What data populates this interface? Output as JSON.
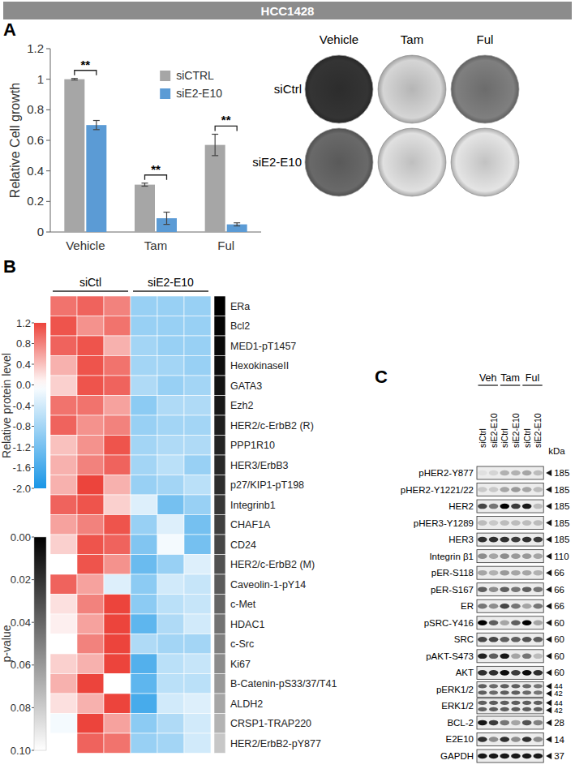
{
  "panel_labels": [
    "A",
    "B",
    "C"
  ],
  "chart_data": [
    {
      "type": "bar",
      "title": "HCC1428",
      "y_label": "Relative Cell growth",
      "categories": [
        "Vehicle",
        "Tam",
        "Ful"
      ],
      "series": [
        {
          "name": "siCTRL",
          "color": "#a6a6a6",
          "values": [
            1,
            0.31,
            0.57
          ],
          "errors": [
            0.005,
            0.01,
            0.07
          ]
        },
        {
          "name": "siE2-E10",
          "color": "#5b9bd5",
          "values": [
            0.7,
            0.09,
            0.05
          ],
          "errors": [
            0.03,
            0.04,
            0.01
          ]
        }
      ],
      "significance": [
        "**",
        "**",
        "**"
      ],
      "ylim": [
        0,
        1.2
      ],
      "yticks": [
        0,
        0.2,
        0.4,
        0.6,
        0.8,
        1,
        1.2
      ],
      "grid": false,
      "legend": "top"
    },
    {
      "type": "heatmap",
      "column_groups": [
        "siCtl",
        "siE2-E10"
      ],
      "rows": [
        "ERa",
        "Bcl2",
        "MED1-pT1457",
        "HexokinaseII",
        "GATA3",
        "Ezh2",
        "HER2/c-ErbB2 (R)",
        "PPP1R10",
        "HER3/ErbB3",
        "p27/KIP1-pT198",
        "Integrinb1",
        "CHAF1A",
        "CD24",
        "HER2/c-ErbB2 (M)",
        "Caveolin-1-pY14",
        "c-Met",
        "HDAC1",
        "c-Src",
        "Ki67",
        "B-Catenin-pS33/37/T41",
        "ALDH2",
        "CRSP1-TRAP220",
        "HER2/ErbB2-pY877"
      ],
      "values": [
        [
          0.9,
          1.0,
          0.8,
          -0.9,
          -0.9,
          -0.9
        ],
        [
          1.1,
          0.7,
          0.9,
          -0.9,
          -0.9,
          -0.9
        ],
        [
          1.0,
          1.1,
          0.5,
          -0.8,
          -0.9,
          -0.9
        ],
        [
          0.5,
          1.1,
          0.9,
          -0.8,
          -0.8,
          -0.9
        ],
        [
          0.3,
          1.1,
          1.0,
          -0.7,
          -0.9,
          -0.8
        ],
        [
          0.9,
          0.9,
          0.6,
          -1.0,
          -0.7,
          -0.7
        ],
        [
          1.0,
          0.7,
          0.8,
          -0.9,
          -0.8,
          -0.8
        ],
        [
          0.4,
          0.7,
          1.1,
          -0.8,
          -0.7,
          -0.7
        ],
        [
          0.5,
          0.8,
          1.0,
          -0.8,
          -0.6,
          -0.9
        ],
        [
          0.5,
          1.2,
          0.5,
          -0.9,
          -0.8,
          -0.6
        ],
        [
          1.0,
          1.1,
          0.3,
          -0.3,
          -1.2,
          -0.9
        ],
        [
          0.6,
          0.8,
          1.1,
          -0.9,
          -0.3,
          -1.2
        ],
        [
          0.3,
          1.1,
          1.0,
          -1.1,
          -0.1,
          -1.2
        ],
        [
          0.0,
          1.1,
          0.7,
          -1.3,
          -0.9,
          -0.3
        ],
        [
          1.0,
          0.6,
          -0.3,
          -1.0,
          -0.4,
          -0.5
        ],
        [
          0.2,
          0.8,
          1.2,
          -1.0,
          -0.6,
          -0.5
        ],
        [
          0.1,
          0.6,
          1.2,
          -1.4,
          -0.7,
          -0.4
        ],
        [
          0.0,
          0.8,
          1.2,
          -0.7,
          -0.8,
          -0.8
        ],
        [
          0.3,
          0.5,
          1.2,
          -1.5,
          -0.6,
          -0.5
        ],
        [
          0.5,
          1.2,
          0.0,
          -1.4,
          -0.6,
          -0.6
        ],
        [
          0.2,
          0.5,
          1.2,
          -1.6,
          -0.4,
          -0.3
        ],
        [
          -0.1,
          1.2,
          0.6,
          -1.0,
          -0.7,
          -0.4
        ],
        [
          0.0,
          1.0,
          0.9,
          -0.9,
          -0.8,
          -0.4
        ]
      ],
      "p_values": [
        0.0,
        0.002,
        0.004,
        0.006,
        0.008,
        0.01,
        0.012,
        0.014,
        0.016,
        0.018,
        0.022,
        0.025,
        0.028,
        0.032,
        0.036,
        0.04,
        0.045,
        0.05,
        0.055,
        0.06,
        0.065,
        0.07,
        0.078
      ],
      "colorbar": {
        "label": "Relative protein level",
        "range": [
          -2,
          1.2
        ],
        "ticks": [
          1.2,
          0.8,
          0.4,
          {
            "value": 0,
            "label": "0.0"
          },
          -0.4,
          -0.8,
          -1.2,
          -1.6,
          {
            "value": -2,
            "label": "-2.0"
          }
        ]
      },
      "p_colorbar": {
        "label": "p-value",
        "range": [
          0,
          0.1
        ],
        "ticks": [
          {
            "value": 0,
            "label": "0.00"
          },
          0.02,
          0.04,
          0.06,
          0.08,
          {
            "value": 0.1,
            "label": "0.10"
          }
        ]
      }
    }
  ],
  "colony_images": {
    "columns": [
      "Vehicle",
      "Tam",
      "Ful"
    ],
    "rows": [
      "siCtrl",
      "siE2-E10"
    ],
    "density": [
      [
        0.9,
        0.15,
        0.55
      ],
      [
        0.65,
        0.1,
        0.08
      ]
    ]
  },
  "western_blot": {
    "conditions": [
      "Veh",
      "Tam",
      "Ful"
    ],
    "lanes": [
      "siCtrl",
      "siE2-E10",
      "siCtrl",
      "siE2-E10",
      "siCtrl",
      "siE2-E10"
    ],
    "kda_label": "kDa",
    "rows": [
      {
        "label": "pHER2-Y877",
        "kda": [
          185
        ],
        "intensity": [
          0.05,
          0.1,
          0.25,
          0.25,
          0.3,
          0.2
        ]
      },
      {
        "label": "pHER2-Y1221/22",
        "kda": [
          185
        ],
        "intensity": [
          0.15,
          0.15,
          0.3,
          0.35,
          0.3,
          0.2
        ]
      },
      {
        "label": "HER2",
        "kda": [
          185
        ],
        "intensity": [
          0.7,
          0.5,
          1.0,
          0.75,
          0.9,
          0.2
        ]
      },
      {
        "label": "pHER3-Y1289",
        "kda": [
          185
        ],
        "intensity": [
          0.2,
          0.15,
          0.2,
          0.2,
          0.2,
          0.2
        ]
      },
      {
        "label": "HER3",
        "kda": [
          185
        ],
        "intensity": [
          0.8,
          0.8,
          0.8,
          0.75,
          0.8,
          0.75
        ]
      },
      {
        "label": "Integrin β1",
        "kda": [
          110
        ],
        "intensity": [
          0.4,
          0.3,
          0.4,
          0.35,
          0.35,
          0.3
        ]
      },
      {
        "label": "pER-S118",
        "kda": [
          66
        ],
        "intensity": [
          0.3,
          0.25,
          0.35,
          0.3,
          0.3,
          0.25
        ]
      },
      {
        "label": "pER-S167",
        "kda": [
          66
        ],
        "intensity": [
          0.6,
          0.4,
          0.6,
          0.5,
          0.6,
          0.5
        ]
      },
      {
        "label": "ER",
        "kda": [
          66
        ],
        "intensity": [
          0.5,
          0.4,
          0.7,
          0.5,
          0.3,
          0.5
        ]
      },
      {
        "label": "pSRC-Y416",
        "kda": [
          60
        ],
        "intensity": [
          1.0,
          0.6,
          0.3,
          0.6,
          1.0,
          0.3
        ]
      },
      {
        "label": "SRC",
        "kda": [
          60
        ],
        "intensity": [
          0.7,
          0.7,
          0.6,
          0.6,
          0.65,
          0.6
        ]
      },
      {
        "label": "pAKT-S473",
        "kda": [
          60
        ],
        "intensity": [
          0.85,
          0.6,
          0.9,
          0.3,
          0.5,
          0.2
        ]
      },
      {
        "label": "AKT",
        "kda": [
          60
        ],
        "intensity": [
          0.8,
          0.8,
          0.95,
          0.75,
          0.95,
          0.8
        ]
      },
      {
        "label": "pERK1/2",
        "kda": [
          44,
          42
        ],
        "intensity": [
          0.6,
          0.55,
          0.6,
          0.6,
          0.55,
          0.5
        ]
      },
      {
        "label": "ERK1/2",
        "kda": [
          44,
          42
        ],
        "intensity": [
          0.6,
          0.6,
          0.6,
          0.6,
          0.6,
          0.6
        ]
      },
      {
        "label": "BCL-2",
        "kda": [
          28
        ],
        "intensity": [
          0.9,
          0.75,
          0.5,
          0.3,
          0.65,
          0.45
        ]
      },
      {
        "label": "E2E10",
        "kda": [
          14
        ],
        "intensity": [
          0.8,
          0.4,
          0.8,
          0.4,
          0.8,
          0.4
        ]
      },
      {
        "label": "GAPDH",
        "kda": [
          37
        ],
        "intensity": [
          0.9,
          0.9,
          0.9,
          0.9,
          0.9,
          0.9
        ]
      }
    ]
  }
}
